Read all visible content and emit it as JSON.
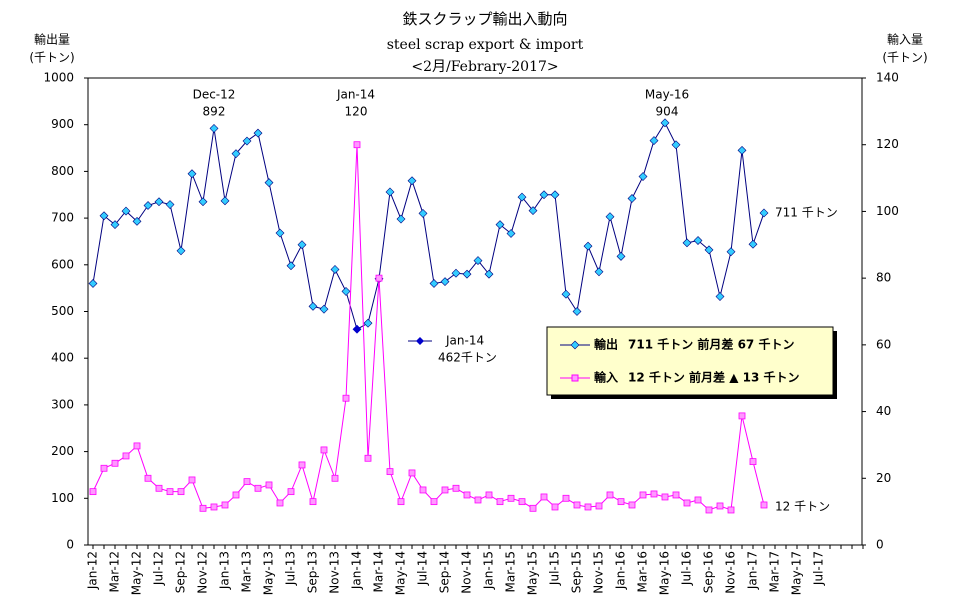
{
  "chart_data": {
    "type": "line",
    "title": "鉄スクラップ輸出入動向",
    "subtitle": "steel scrap export & import",
    "period": "<2月/Febrary-2017>",
    "ylabel": [
      "輸出量",
      "(千トン)"
    ],
    "y2label": [
      "輸入量",
      "(千トン)"
    ],
    "categories": [
      "Jan-12",
      null,
      "Mar-12",
      null,
      "May-12",
      null,
      "Jul-12",
      null,
      "Sep-12",
      null,
      "Nov-12",
      null,
      "Jan-13",
      null,
      "Mar-13",
      null,
      "May-13",
      null,
      "Jul-13",
      null,
      "Sep-13",
      null,
      "Nov-13",
      null,
      "Jan-14",
      null,
      "Mar-14",
      null,
      "May-14",
      null,
      "Jul-14",
      null,
      "Sep-14",
      null,
      "Nov-14",
      null,
      "Jan-15",
      null,
      "Mar-15",
      null,
      "May-15",
      null,
      "Jul-15",
      null,
      "Sep-15",
      null,
      "Nov-15",
      null,
      "Jan-16",
      null,
      "Mar-16",
      null,
      "May-16",
      null,
      "Jul-16",
      null,
      "Sep-16",
      null,
      "Nov-16",
      null,
      "Jan-17",
      null,
      "Mar-17",
      null,
      "May-17",
      null,
      "Jul-17",
      null,
      null,
      null,
      null
    ],
    "series": [
      {
        "name": "輸出",
        "summary": "711 千トン 前月差 67 千トン",
        "color": "#000080",
        "marker_color": "#33ccff",
        "end_label": "711 千トン",
        "values": [
          560,
          705,
          686,
          715,
          693,
          727,
          735,
          729,
          630,
          795,
          735,
          892,
          737,
          838,
          865,
          882,
          776,
          668,
          598,
          643,
          511,
          505,
          590,
          543,
          462,
          475,
          570,
          756,
          698,
          780,
          710,
          560,
          564,
          582,
          580,
          609,
          580,
          686,
          667,
          745,
          716,
          750,
          750,
          537,
          500,
          640,
          585,
          703,
          618,
          742,
          789,
          866,
          904,
          857,
          647,
          652,
          632,
          532,
          628,
          845,
          644,
          711,
          null,
          null,
          null,
          null,
          null,
          null,
          null,
          null,
          null
        ]
      },
      {
        "name": "輸入",
        "summary": "12 千トン 前月差 ▲ 13 千トン",
        "color": "#ff00ff",
        "marker_color": "#ff99ff",
        "axis": "y2",
        "end_label": "12 千トン",
        "values": [
          16,
          23,
          24.5,
          26.7,
          29.7,
          20,
          17,
          16,
          16,
          19.5,
          11,
          11.4,
          12,
          15,
          19,
          17,
          18,
          12.6,
          16,
          24,
          13,
          28.5,
          20,
          44,
          120,
          26,
          80,
          22,
          13,
          21.6,
          16.5,
          13,
          16.5,
          17,
          15,
          13.5,
          15,
          13,
          14,
          13,
          11,
          14.4,
          11.4,
          14,
          12,
          11.4,
          11.7,
          15,
          13,
          12,
          15,
          15.3,
          14.4,
          15,
          12.6,
          13.5,
          10.5,
          11.7,
          10.5,
          38.7,
          25,
          12,
          null,
          null,
          null,
          null,
          null,
          null,
          null,
          null,
          null
        ]
      }
    ],
    "annotations": [
      {
        "label": "Dec-12",
        "value": 892
      },
      {
        "label": "Jan-14",
        "value": 120
      },
      {
        "label": "May-16",
        "value": 904
      }
    ],
    "highlight": {
      "label": "Jan-14",
      "text": "462千トン",
      "color": "#0000cc"
    },
    "ylim": [
      0,
      1000
    ],
    "yticks": [
      0,
      100,
      200,
      300,
      400,
      500,
      600,
      700,
      800,
      900,
      1000
    ],
    "y2lim": [
      0,
      140
    ],
    "y2ticks": [
      0,
      20,
      40,
      60,
      80,
      100,
      120,
      140
    ],
    "legend_position": "center-right"
  }
}
